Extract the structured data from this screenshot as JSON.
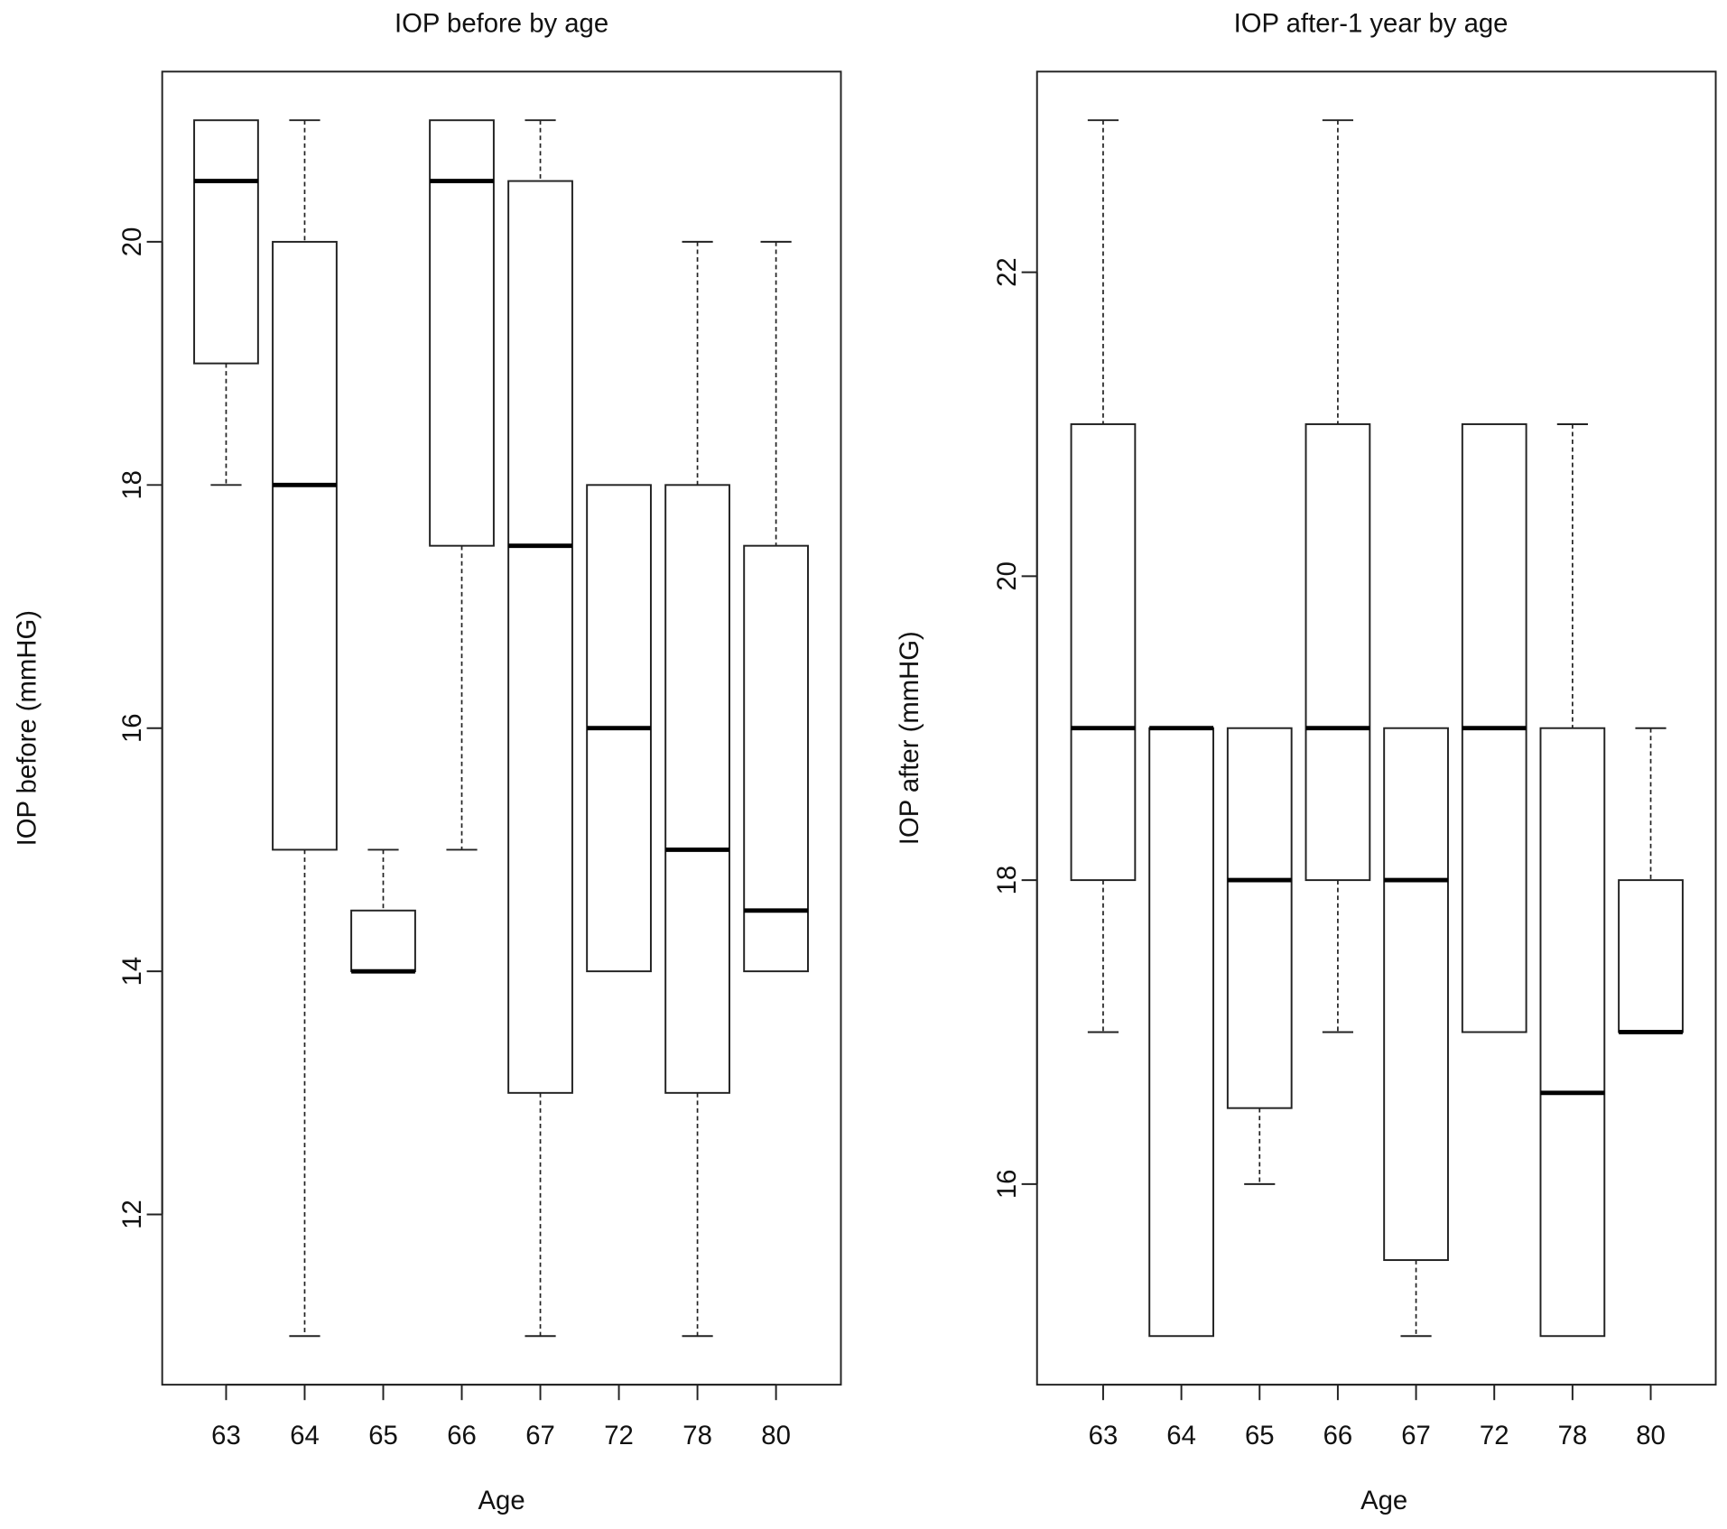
{
  "chart_data": [
    {
      "type": "box",
      "title": "IOP before by age",
      "xlabel": "Age",
      "ylabel": "IOP before (mmHG)",
      "categories": [
        "63",
        "64",
        "65",
        "66",
        "67",
        "72",
        "78",
        "80"
      ],
      "ylim": [
        10.6,
        21.4
      ],
      "yticks": [
        12,
        14,
        16,
        18,
        20
      ],
      "grid": false,
      "boxes": [
        {
          "category": "63",
          "whisker_low": 18,
          "q1": 19,
          "median": 20.5,
          "q3": 21,
          "whisker_high": 21
        },
        {
          "category": "64",
          "whisker_low": 11,
          "q1": 15,
          "median": 18,
          "q3": 20,
          "whisker_high": 21
        },
        {
          "category": "65",
          "whisker_low": 14,
          "q1": 14,
          "median": 14,
          "q3": 14.5,
          "whisker_high": 15
        },
        {
          "category": "66",
          "whisker_low": 15,
          "q1": 17.5,
          "median": 20.5,
          "q3": 21,
          "whisker_high": 21
        },
        {
          "category": "67",
          "whisker_low": 11,
          "q1": 13,
          "median": 17.5,
          "q3": 20.5,
          "whisker_high": 21
        },
        {
          "category": "72",
          "whisker_low": 14,
          "q1": 14,
          "median": 16,
          "q3": 18,
          "whisker_high": 18
        },
        {
          "category": "78",
          "whisker_low": 11,
          "q1": 13,
          "median": 15,
          "q3": 18,
          "whisker_high": 20
        },
        {
          "category": "80",
          "whisker_low": 14,
          "q1": 14,
          "median": 14.5,
          "q3": 17.5,
          "whisker_high": 20
        }
      ]
    },
    {
      "type": "box",
      "title": "IOP after-1 year by age",
      "xlabel": "Age",
      "ylabel": "IOP after (mmHG)",
      "categories": [
        "63",
        "64",
        "65",
        "66",
        "67",
        "72",
        "78",
        "80"
      ],
      "ylim": [
        14.68,
        23.32
      ],
      "yticks": [
        16,
        18,
        20,
        22
      ],
      "grid": false,
      "boxes": [
        {
          "category": "63",
          "whisker_low": 17,
          "q1": 18,
          "median": 19,
          "q3": 21,
          "whisker_high": 23
        },
        {
          "category": "64",
          "whisker_low": 15,
          "q1": 15,
          "median": 19,
          "q3": 19,
          "whisker_high": 19
        },
        {
          "category": "65",
          "whisker_low": 16,
          "q1": 16.5,
          "median": 18,
          "q3": 19,
          "whisker_high": 19
        },
        {
          "category": "66",
          "whisker_low": 17,
          "q1": 18,
          "median": 19,
          "q3": 21,
          "whisker_high": 23
        },
        {
          "category": "67",
          "whisker_low": 15,
          "q1": 15.5,
          "median": 18,
          "q3": 19,
          "whisker_high": 19
        },
        {
          "category": "72",
          "whisker_low": 17,
          "q1": 17,
          "median": 19,
          "q3": 21,
          "whisker_high": 21
        },
        {
          "category": "78",
          "whisker_low": 15,
          "q1": 15,
          "median": 16.6,
          "q3": 19,
          "whisker_high": 21
        },
        {
          "category": "80",
          "whisker_low": 17,
          "q1": 17,
          "median": 17,
          "q3": 18,
          "whisker_high": 19
        }
      ]
    }
  ]
}
